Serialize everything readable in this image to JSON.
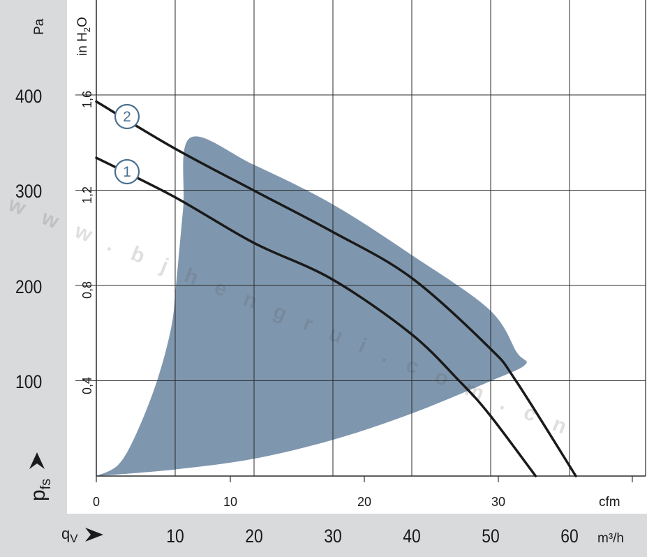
{
  "chart_data": {
    "type": "line",
    "x_primary": {
      "unit": "m³/h",
      "label": "q_V",
      "ticks": [
        10,
        20,
        30,
        40,
        50,
        60
      ],
      "range": [
        0,
        70
      ]
    },
    "x_secondary": {
      "unit": "cfm",
      "ticks": [
        0,
        10,
        20,
        30
      ],
      "cfm_to_m3h": 1.699
    },
    "y_primary": {
      "unit": "Pa",
      "label": "p_fs",
      "ticks": [
        100,
        200,
        300,
        400
      ],
      "range": [
        0,
        500
      ]
    },
    "y_secondary": {
      "unit": "in H2O",
      "ticks": [
        "0,4",
        "0,8",
        "1,2",
        "1,6"
      ]
    },
    "grid": true,
    "series": [
      {
        "marker": "1",
        "points": [
          [
            0,
            334
          ],
          [
            9.9,
            293
          ],
          [
            19.9,
            245
          ],
          [
            29.8,
            207
          ],
          [
            39.8,
            150
          ],
          [
            46.0,
            100
          ],
          [
            49.8,
            65
          ],
          [
            55.7,
            0
          ]
        ]
      },
      {
        "marker": "2",
        "points": [
          [
            0,
            393
          ],
          [
            9.9,
            344
          ],
          [
            19.9,
            300
          ],
          [
            29.8,
            257
          ],
          [
            39.8,
            209
          ],
          [
            49.8,
            135
          ],
          [
            53.2,
            100
          ],
          [
            60.8,
            0
          ]
        ]
      }
    ],
    "operating_region": {
      "color": "#7f97ae",
      "polygon": [
        [
          0,
          0
        ],
        [
          2.8,
          12
        ],
        [
          5.1,
          45
        ],
        [
          7.7,
          100
        ],
        [
          9.5,
          156
        ],
        [
          10.1,
          200
        ],
        [
          11.0,
          280
        ],
        [
          11.9,
          355
        ],
        [
          19.9,
          327
        ],
        [
          29.8,
          286
        ],
        [
          39.8,
          233
        ],
        [
          49.8,
          175
        ],
        [
          53.3,
          130
        ],
        [
          54.4,
          117
        ],
        [
          49.8,
          99
        ],
        [
          39.8,
          65
        ],
        [
          30,
          38
        ],
        [
          19.9,
          18
        ],
        [
          10.1,
          7
        ],
        [
          0,
          0
        ]
      ]
    },
    "curve_color": "#1a1a1a",
    "marker_color": "#4a6f8f"
  },
  "labels": {
    "pa_unit": "Pa",
    "inh2o_unit": "in H",
    "inh2o_sub": "2",
    "inh2o_tail": "O",
    "pfs": "p",
    "pfs_sub": "fs",
    "qv": "q",
    "qv_sub": "V",
    "cfm_unit": "cfm",
    "m3h_unit": "m³/h",
    "pa_ticks": [
      "400",
      "300",
      "200",
      "100"
    ],
    "inh2o_ticks": [
      "1,6",
      "1,2",
      "0,8",
      "0,4"
    ],
    "cfm_ticks": [
      "0",
      "10",
      "20",
      "30"
    ],
    "m3h_ticks": [
      "10",
      "20",
      "30",
      "40",
      "50",
      "60"
    ],
    "marker_1": "1",
    "marker_2": "2"
  },
  "watermark": "www.bjhengrui.com.cn"
}
